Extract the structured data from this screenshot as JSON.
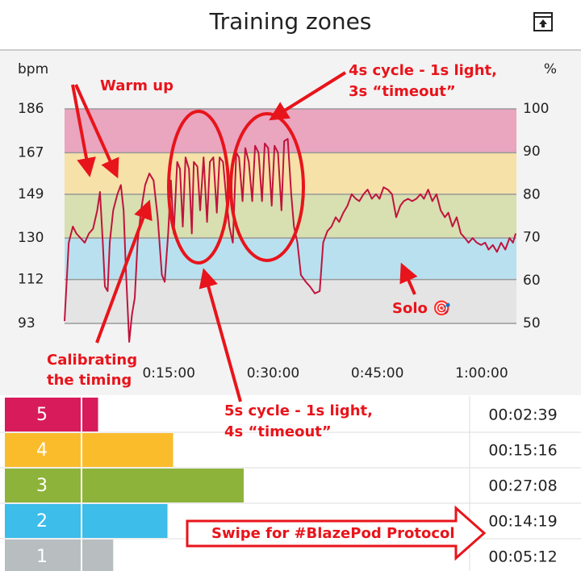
{
  "header": {
    "title": "Training zones"
  },
  "chart_data": {
    "type": "line",
    "y_label": "bpm",
    "y2_label": "%",
    "color": "#c0143c",
    "x": [
      0,
      0.6,
      1.2,
      1.7,
      2.3,
      2.9,
      3.5,
      4.1,
      4.7,
      5.1,
      5.5,
      5.8,
      6.2,
      6.5,
      7.0,
      7.6,
      8.1,
      8.5,
      8.8,
      9.3,
      9.7,
      10.1,
      10.5,
      11.0,
      11.6,
      12.2,
      12.8,
      13.4,
      14.0,
      14.4,
      14.9,
      15.3,
      15.7,
      16.2,
      16.6,
      17.0,
      17.4,
      17.9,
      18.3,
      18.6,
      19.1,
      19.5,
      20.0,
      20.5,
      20.9,
      21.4,
      21.9,
      22.3,
      22.8,
      23.3,
      23.7,
      24.2,
      24.7,
      25.1,
      25.6,
      26.0,
      26.5,
      27.0,
      27.4,
      27.9,
      28.4,
      28.8,
      29.3,
      29.8,
      30.2,
      30.7,
      31.2,
      31.6,
      32.1,
      32.6,
      33.0,
      33.5,
      34.0,
      34.7,
      35.3,
      36.0,
      36.7,
      37.2,
      37.8,
      38.4,
      39.0,
      39.5,
      40.1,
      40.7,
      41.3,
      41.9,
      42.4,
      43.0,
      43.6,
      44.2,
      44.8,
      45.3,
      45.9,
      46.5,
      47.1,
      47.7,
      48.3,
      48.8,
      49.4,
      50.0,
      50.6,
      51.2,
      51.7,
      52.3,
      52.9,
      53.5,
      54.1,
      54.7,
      55.2,
      55.8,
      56.4,
      57.0,
      57.6,
      58.1,
      58.7,
      59.3,
      59.9,
      60.5,
      61.0,
      61.6,
      62.2,
      62.8,
      63.4,
      64.0,
      64.5,
      64.9
    ],
    "values": [
      94,
      128,
      135,
      132,
      130,
      128,
      132,
      134,
      142,
      150,
      128,
      109,
      107,
      128,
      142,
      149,
      153,
      142,
      118,
      85,
      97,
      104,
      128,
      142,
      153,
      158,
      155,
      139,
      114,
      111,
      132,
      155,
      132,
      163,
      160,
      135,
      165,
      160,
      132,
      163,
      161,
      142,
      165,
      137,
      163,
      165,
      141,
      165,
      163,
      146,
      135,
      128,
      167,
      165,
      146,
      169,
      163,
      146,
      170,
      167,
      146,
      171,
      169,
      144,
      170,
      167,
      142,
      172,
      173,
      149,
      135,
      128,
      114,
      111,
      109,
      106,
      107,
      128,
      133,
      135,
      139,
      137,
      141,
      144,
      149,
      147,
      146,
      149,
      151,
      147,
      149,
      147,
      152,
      151,
      149,
      139,
      144,
      146,
      147,
      146,
      147,
      149,
      147,
      151,
      146,
      149,
      142,
      139,
      141,
      135,
      139,
      132,
      130,
      128,
      130,
      128,
      127,
      128,
      125,
      127,
      124,
      128,
      125,
      130,
      128,
      132
    ],
    "xlim": [
      0,
      65
    ],
    "xticks": [
      {
        "value": 15,
        "label": "0:15:00"
      },
      {
        "value": 30,
        "label": "0:30:00"
      },
      {
        "value": 45,
        "label": "0:45:00"
      },
      {
        "value": 60,
        "label": "1:00:00"
      }
    ],
    "ylim": [
      93,
      186
    ],
    "yticks": [
      93,
      112,
      130,
      149,
      167,
      186
    ],
    "y2lim": [
      50,
      100
    ],
    "y2ticks": [
      50,
      60,
      70,
      80,
      90,
      100
    ],
    "grid": true,
    "band_colors": [
      "#e4e4e4",
      "#b9e0ee",
      "#d8dfb0",
      "#f6e1a8",
      "#eaa5bf"
    ]
  },
  "annotations": {
    "warm_up": "Warm up",
    "cycle4": [
      "4s cycle - 1s light,",
      "3s “timeout”"
    ],
    "calibrating": [
      "Calibrating",
      "the timing"
    ],
    "cycle5": [
      "5s cycle - 1s light,",
      "4s “timeout”"
    ],
    "solo": "Solo 🎯",
    "swipe": "Swipe for #BlazePod Protocol"
  },
  "zones": [
    {
      "label": "5",
      "color": "#d81b5a",
      "time": "00:02:39"
    },
    {
      "label": "4",
      "color": "#fbbc2c",
      "time": "00:15:16"
    },
    {
      "label": "3",
      "color": "#8db33a",
      "time": "00:27:08"
    },
    {
      "label": "2",
      "color": "#3dbde9",
      "time": "00:14:19"
    },
    {
      "label": "1",
      "color": "#b8bec0",
      "time": "00:05:12"
    }
  ]
}
